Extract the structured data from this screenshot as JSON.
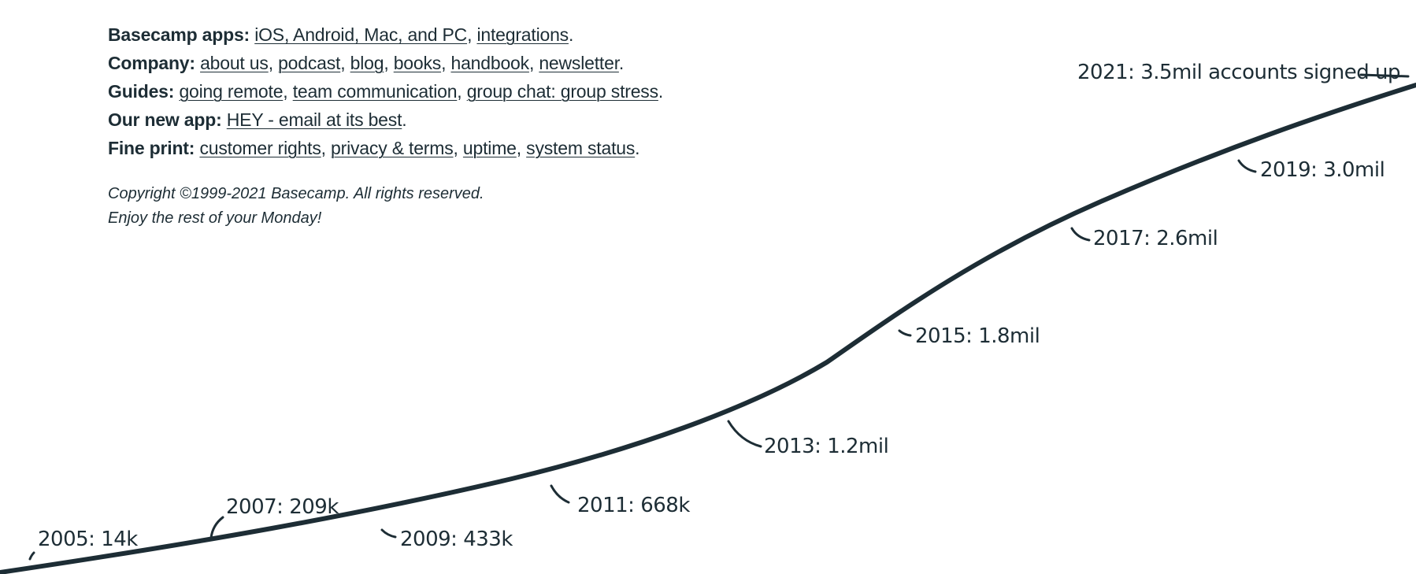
{
  "footer": {
    "rows": [
      {
        "label": "Basecamp apps:",
        "links": [
          "iOS, Android, Mac, and PC",
          "integrations"
        ]
      },
      {
        "label": "Company:",
        "links": [
          "about us",
          "podcast",
          "blog",
          "books",
          "handbook",
          "newsletter"
        ]
      },
      {
        "label": "Guides:",
        "links": [
          "going remote",
          "team communication",
          "group chat: group stress"
        ]
      },
      {
        "label": "Our new app:",
        "links": [
          "HEY - email at its best"
        ]
      },
      {
        "label": "Fine print:",
        "links": [
          "customer rights",
          "privacy & terms",
          "uptime",
          "system status"
        ]
      }
    ],
    "copyright": "Copyright ©1999-2021 Basecamp. All rights reserved.",
    "greeting": "Enjoy the rest of your Monday!"
  },
  "chart_data": {
    "type": "line",
    "title": "",
    "xlabel": "",
    "ylabel": "",
    "grid": false,
    "series": [
      {
        "x": [
          2005,
          2007,
          2009,
          2011,
          2013,
          2015,
          2017,
          2019,
          2021
        ],
        "values": [
          0.014,
          0.209,
          0.433,
          0.668,
          1.2,
          1.8,
          2.6,
          3.0,
          3.5
        ]
      }
    ],
    "annotations": [
      "2005: 14k",
      "2007: 209k",
      "2009: 433k",
      "2011: 668k",
      "2013: 1.2mil",
      "2015: 1.8mil",
      "2017: 2.6mil",
      "2019: 3.0mil",
      "2021: 3.5mil accounts signed up"
    ],
    "colors": {
      "line": "#1d2d35",
      "text": "#1d2d35"
    }
  }
}
